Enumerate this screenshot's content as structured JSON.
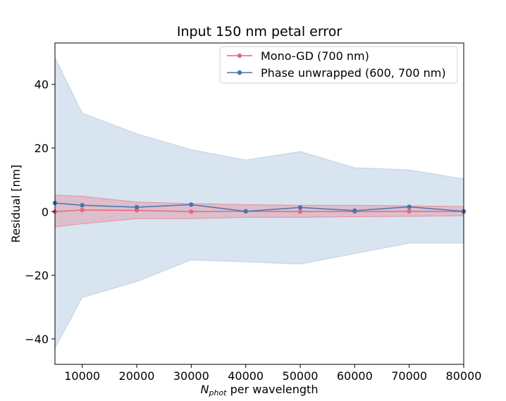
{
  "chart_data": {
    "type": "line",
    "title": "Input 150 nm petal error",
    "xlabel": {
      "main": "N",
      "sub": "phot",
      "rest": " per wavelength"
    },
    "ylabel": "Residual [nm]",
    "xlim": [
      5000,
      80000
    ],
    "ylim": [
      -48,
      53
    ],
    "xticks": [
      10000,
      20000,
      30000,
      40000,
      50000,
      60000,
      70000,
      80000
    ],
    "xtick_labels": [
      "10000",
      "20000",
      "30000",
      "40000",
      "50000",
      "60000",
      "70000",
      "80000"
    ],
    "yticks": [
      -40,
      -20,
      0,
      20,
      40
    ],
    "ytick_labels": [
      "−40",
      "−20",
      "0",
      "20",
      "40"
    ],
    "grid": false,
    "legend_position": "top-right",
    "x": [
      5000,
      10000,
      20000,
      30000,
      40000,
      50000,
      60000,
      70000,
      80000
    ],
    "series": [
      {
        "name": "Mono-GD (700 nm)",
        "color": "#e8677a",
        "fill_color": "#e8677a",
        "values": [
          0.0,
          0.5,
          0.4,
          0.0,
          0.1,
          0.0,
          0.0,
          0.1,
          0.0
        ],
        "upper": [
          5.2,
          4.8,
          3.0,
          2.5,
          2.2,
          2.0,
          2.0,
          1.8,
          1.6
        ],
        "lower": [
          -4.8,
          -3.8,
          -2.2,
          -2.2,
          -1.8,
          -1.8,
          -1.6,
          -1.5,
          -1.3
        ]
      },
      {
        "name": "Phase unwrapped (600, 700 nm)",
        "color": "#4a74ab",
        "fill_color": "#a9c3dc",
        "values": [
          2.7,
          2.0,
          1.4,
          2.2,
          0.1,
          1.3,
          0.3,
          1.5,
          0.1
        ],
        "upper": [
          48.5,
          31.0,
          24.5,
          19.5,
          16.2,
          18.9,
          13.8,
          13.1,
          10.3
        ],
        "lower": [
          -43.0,
          -27.0,
          -22.0,
          -15.2,
          -15.8,
          -16.5,
          -13.2,
          -9.9,
          -9.9
        ]
      }
    ]
  }
}
